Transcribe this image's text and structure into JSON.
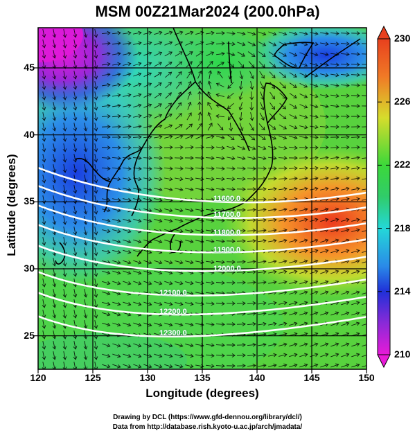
{
  "title": "MSM 00Z21Mar2024 (200.0hPa)",
  "x_axis": {
    "label": "Longitude (degrees)",
    "ticks": [
      "120",
      "125",
      "130",
      "135",
      "140",
      "145",
      "150"
    ],
    "range": [
      120,
      150
    ]
  },
  "y_axis": {
    "label": "Latitude  (degrees)",
    "ticks": [
      "25",
      "30",
      "35",
      "40",
      "45"
    ],
    "range": [
      22.5,
      48
    ]
  },
  "colorbar": {
    "ticks": [
      "230",
      "226",
      "222",
      "218",
      "214",
      "210"
    ],
    "range": [
      210,
      230
    ]
  },
  "contours": [
    {
      "label": "11600.0",
      "lat": 34.8
    },
    {
      "label": "11700.0",
      "lat": 33.6
    },
    {
      "label": "11800.0",
      "lat": 32.3
    },
    {
      "label": "11900.0",
      "lat": 31.0
    },
    {
      "label": "12000.0",
      "lat": 29.6
    },
    {
      "label": "12100.0",
      "lat": 27.8
    },
    {
      "label": "12200.0",
      "lat": 26.4
    },
    {
      "label": "12300.0",
      "lat": 24.8
    }
  ],
  "credits": [
    "Drawing by DCL (https://www.gfd-dennou.org/library/dcl/)",
    "Data from http://database.rish.kyoto-u.ac.jp/arch/jmadata/"
  ],
  "colors": {
    "jet_core": "#e4401f",
    "low_center": "#33cc33",
    "upper_left": "#e01ad8"
  }
}
